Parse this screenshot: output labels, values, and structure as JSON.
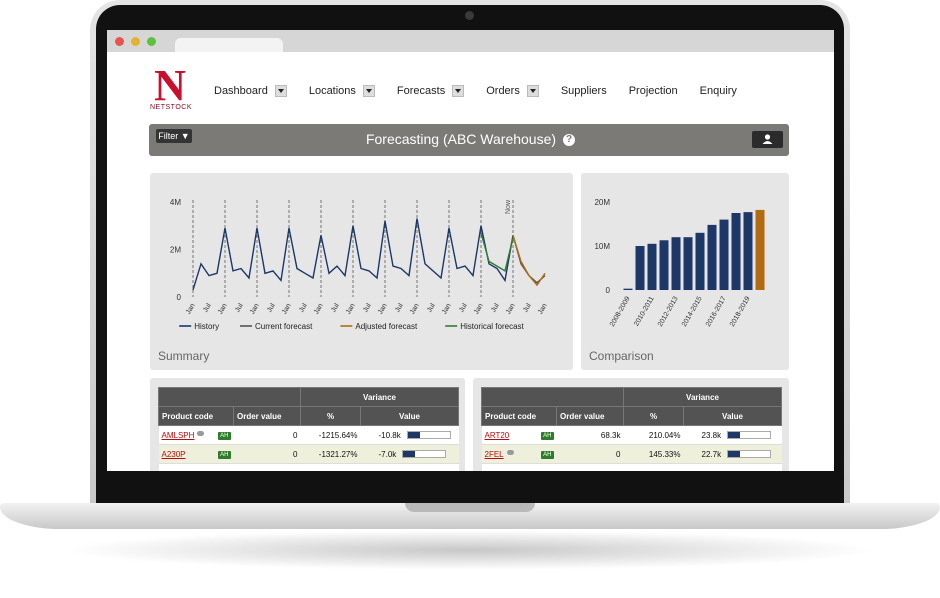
{
  "app": {
    "logo_mark": "N",
    "brand": "NETSTOCK",
    "nav": [
      {
        "label": "Dashboard",
        "dropdown": true
      },
      {
        "label": "Locations",
        "dropdown": true
      },
      {
        "label": "Forecasts",
        "dropdown": true
      },
      {
        "label": "Orders",
        "dropdown": true
      },
      {
        "label": "Suppliers",
        "dropdown": false
      },
      {
        "label": "Projection",
        "dropdown": false
      },
      {
        "label": "Enquiry",
        "dropdown": false
      }
    ],
    "filter": "Filter ▼",
    "title": "Forecasting (ABC Warehouse)",
    "help": "?"
  },
  "chart_data": [
    {
      "type": "line",
      "title": "Summary",
      "categories": [
        "Jan",
        null,
        "Jul",
        null,
        "Jan",
        null,
        "Jul",
        null,
        "Jan",
        null,
        "Jul",
        null,
        "Jan",
        null,
        "Jul",
        null,
        "Jan",
        null,
        "Jul",
        null,
        "Jan",
        null,
        "Jul",
        null,
        "Jan",
        null,
        "Jul",
        null,
        "Jan",
        null,
        "Jul",
        null,
        "Jan",
        null,
        "Jul",
        null,
        "Jan",
        null,
        "Jul",
        null,
        "Jan",
        null,
        "Jul",
        null,
        "Jan"
      ],
      "series": [
        {
          "name": "History",
          "color": "#1c3768",
          "values": [
            300000,
            1400000,
            900000,
            1000000,
            2900000,
            1100000,
            1200000,
            800000,
            2900000,
            1000000,
            1100000,
            700000,
            2900000,
            1200000,
            1000000,
            800000,
            2600000,
            1000000,
            1300000,
            900000,
            3000000,
            1200000,
            1100000,
            800000,
            3200000,
            1300000,
            1200000,
            900000,
            3300000,
            1400000,
            1100000,
            800000,
            2900000,
            1200000,
            1300000,
            900000,
            3000000,
            1400000,
            1200000,
            700000,
            2600000,
            null,
            null,
            null,
            null
          ]
        },
        {
          "name": "Current forecast",
          "color": "#555555",
          "values": [
            null,
            null,
            null,
            null,
            null,
            null,
            null,
            null,
            null,
            null,
            null,
            null,
            null,
            null,
            null,
            null,
            null,
            null,
            null,
            null,
            null,
            null,
            null,
            null,
            null,
            null,
            null,
            null,
            null,
            null,
            null,
            null,
            null,
            null,
            null,
            null,
            null,
            null,
            null,
            null,
            2600000,
            1400000,
            900000,
            600000,
            900000
          ]
        },
        {
          "name": "Adjusted forecast",
          "color": "#b36b12",
          "values": [
            null,
            null,
            null,
            null,
            null,
            null,
            null,
            null,
            null,
            null,
            null,
            null,
            null,
            null,
            null,
            null,
            null,
            null,
            null,
            null,
            null,
            null,
            null,
            null,
            null,
            null,
            null,
            null,
            null,
            null,
            null,
            null,
            null,
            null,
            null,
            null,
            null,
            null,
            null,
            null,
            2600000,
            1500000,
            900000,
            500000,
            1000000
          ]
        },
        {
          "name": "Historical forecast",
          "color": "#2e7d32",
          "values": [
            null,
            null,
            null,
            null,
            null,
            null,
            null,
            null,
            null,
            null,
            null,
            null,
            null,
            null,
            null,
            null,
            null,
            null,
            null,
            null,
            null,
            null,
            null,
            null,
            null,
            null,
            null,
            null,
            null,
            null,
            null,
            null,
            null,
            null,
            null,
            null,
            2700000,
            1500000,
            1300000,
            1100000,
            2500000,
            null,
            null,
            null,
            null
          ]
        }
      ],
      "ylim": [
        0,
        4000000
      ],
      "yticks": [
        0,
        {
          "value": 2000000,
          "label": "2M"
        },
        {
          "value": 4000000,
          "label": "4M"
        }
      ],
      "grid": false,
      "legend": "bottom",
      "annotation": "Now"
    },
    {
      "type": "bar",
      "title": "Comparison",
      "categories": [
        "2008-2009",
        null,
        "2010-2011",
        null,
        "2012-2013",
        null,
        "2014-2015",
        null,
        "2016-2017",
        null,
        "2018-2019",
        null
      ],
      "values": [
        300000,
        10000000,
        10500000,
        11300000,
        12000000,
        12000000,
        13000000,
        14800000,
        16000000,
        17500000,
        17700000,
        18200000
      ],
      "colors": [
        "#1c3768",
        "#1c3768",
        "#1c3768",
        "#1c3768",
        "#1c3768",
        "#1c3768",
        "#1c3768",
        "#1c3768",
        "#1c3768",
        "#1c3768",
        "#1c3768",
        "#b36b12"
      ],
      "ylim": [
        0,
        20000000
      ],
      "yticks": [
        0,
        {
          "value": 10000000,
          "label": "10M"
        },
        {
          "value": 20000000,
          "label": "20M"
        }
      ],
      "grid": false
    }
  ],
  "tables": [
    {
      "group_header": "Variance",
      "columns": [
        "Product code",
        "Order value",
        "%",
        "Value"
      ],
      "rows": [
        {
          "cells": [
            "AMLSPH",
            "AH",
            "0",
            "-1215.64%",
            "-10.8k"
          ],
          "comment": true
        },
        {
          "cells": [
            "A230P",
            "AH",
            "0",
            "-1321.27%",
            "-7.0k"
          ],
          "comment": false
        }
      ]
    },
    {
      "group_header": "Variance",
      "columns": [
        "Product code",
        "Order value",
        "%",
        "Value"
      ],
      "rows": [
        {
          "cells": [
            "ART20",
            "AH",
            "68.3k",
            "210.04%",
            "23.8k"
          ],
          "comment": false
        },
        {
          "cells": [
            "2FEL",
            "AH",
            "0",
            "145.33%",
            "22.7k"
          ],
          "comment": true
        }
      ]
    }
  ]
}
